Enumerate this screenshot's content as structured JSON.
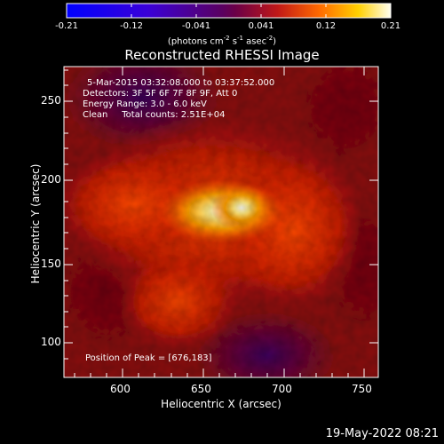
{
  "title": "Reconstructed RHESSI Image",
  "colorbar": {
    "labels": [
      "-0.21",
      "-0.12",
      "-0.041",
      "0.041",
      "0.12",
      "0.21"
    ],
    "units_prefix": "(photons cm",
    "units_exp1": "-2",
    "units_mid1": " s",
    "units_exp2": "-1",
    "units_mid2": " asec",
    "units_exp3": "-2",
    "units_suffix": ")"
  },
  "chart_data": {
    "type": "heatmap",
    "title": "Reconstructed RHESSI Image",
    "xlabel": "Heliocentric X (arcsec)",
    "ylabel": "Heliocentric Y (arcsec)",
    "x_ticks": [
      "600",
      "650",
      "700",
      "750"
    ],
    "y_ticks": [
      "100",
      "150",
      "200",
      "250"
    ],
    "xlim": [
      566,
      760
    ],
    "ylim": [
      73,
      272
    ],
    "zlim": [
      -0.21,
      0.21
    ],
    "peak": [
      676,
      183
    ]
  },
  "annotations": {
    "time_range": "5-Mar-2015 03:32:08.000 to 03:37:52.000",
    "detectors": "Detectors: 3F 5F 6F 7F 8F 9F, Att 0",
    "energy": "Energy Range: 3.0 - 6.0 keV",
    "clean": "Clean     Total counts: 2.51E+04",
    "peak_text": "Position of Peak = [676,183]"
  },
  "timestamp": "19-May-2022 08:21"
}
